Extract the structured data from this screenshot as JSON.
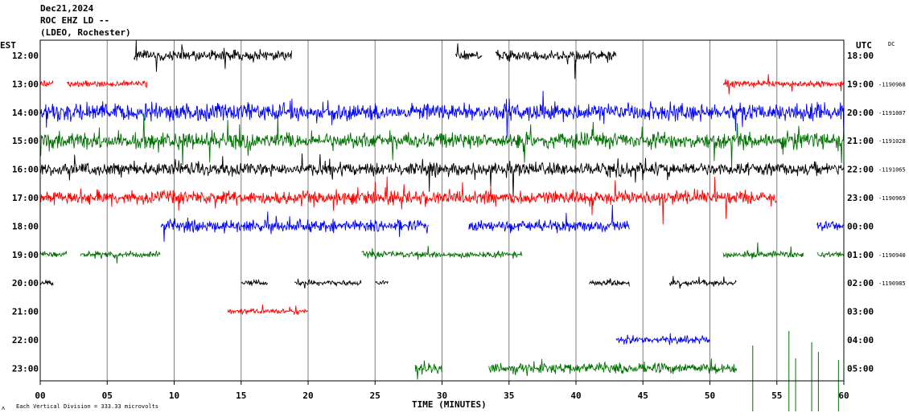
{
  "header": {
    "date": "Dec21,2024",
    "station": "ROC EHZ LD --",
    "network": "(LDEO, Rochester)"
  },
  "chart_data": {
    "type": "line",
    "title": "Dec21,2024 ROC EHZ LD -- (LDEO, Rochester)",
    "left_axis_label": "EST",
    "right_axis_label": "UTC",
    "right_corner_label": "DC",
    "xlabel": "TIME (MINUTES)",
    "footnote": "Each Vertical Division = 333.33 microvolts",
    "xlim": [
      0,
      60
    ],
    "x_ticks": [
      "00",
      "05",
      "10",
      "15",
      "20",
      "25",
      "30",
      "35",
      "40",
      "45",
      "50",
      "55",
      "60"
    ],
    "grid_x": true,
    "trace_colors": [
      "#000000",
      "#ff0000",
      "#0000ff",
      "#007000"
    ],
    "rows": [
      {
        "est": "12:00",
        "utc": "18:00",
        "dc": "",
        "color": "#000000",
        "segments": [
          [
            7,
            18.8
          ],
          [
            31,
            33
          ],
          [
            34,
            43
          ]
        ],
        "amp": 1.0
      },
      {
        "est": "13:00",
        "utc": "19:00",
        "dc": "1190968",
        "color": "#ff0000",
        "segments": [
          [
            0,
            1
          ],
          [
            2,
            8
          ],
          [
            51,
            60
          ]
        ],
        "amp": 0.6
      },
      {
        "est": "14:00",
        "utc": "20:00",
        "dc": "1191007",
        "color": "#0000ff",
        "segments": [
          [
            0,
            60
          ]
        ],
        "amp": 1.6
      },
      {
        "est": "15:00",
        "utc": "21:00",
        "dc": "1191028",
        "color": "#007000",
        "segments": [
          [
            0,
            60
          ]
        ],
        "amp": 1.5
      },
      {
        "est": "16:00",
        "utc": "22:00",
        "dc": "1191065",
        "color": "#000000",
        "segments": [
          [
            0,
            60
          ]
        ],
        "amp": 1.2
      },
      {
        "est": "17:00",
        "utc": "23:00",
        "dc": "1190969",
        "color": "#ff0000",
        "segments": [
          [
            0,
            55
          ]
        ],
        "amp": 1.3
      },
      {
        "est": "18:00",
        "utc": "00:00",
        "dc": "",
        "color": "#0000ff",
        "segments": [
          [
            9,
            29
          ],
          [
            32,
            44
          ],
          [
            58,
            60
          ]
        ],
        "amp": 1.1
      },
      {
        "est": "19:00",
        "utc": "01:00",
        "dc": "1190940",
        "color": "#007000",
        "segments": [
          [
            0,
            2
          ],
          [
            3,
            9
          ],
          [
            24,
            36
          ],
          [
            51,
            57
          ],
          [
            58,
            60
          ]
        ],
        "amp": 0.6
      },
      {
        "est": "20:00",
        "utc": "02:00",
        "dc": "1190985",
        "color": "#000000",
        "segments": [
          [
            0,
            1
          ],
          [
            15,
            17
          ],
          [
            19,
            24
          ],
          [
            25,
            26
          ],
          [
            41,
            44
          ],
          [
            47,
            52
          ]
        ],
        "amp": 0.5
      },
      {
        "est": "21:00",
        "utc": "03:00",
        "dc": "",
        "color": "#ff0000",
        "segments": [
          [
            14,
            20
          ]
        ],
        "amp": 0.5
      },
      {
        "est": "22:00",
        "utc": "04:00",
        "dc": "",
        "color": "#0000ff",
        "segments": [
          [
            43,
            50
          ]
        ],
        "amp": 0.8
      },
      {
        "est": "23:00",
        "utc": "05:00",
        "dc": "",
        "color": "#007000",
        "segments": [
          [
            28,
            30
          ],
          [
            33.5,
            52
          ]
        ],
        "amp": 1.0
      }
    ]
  }
}
